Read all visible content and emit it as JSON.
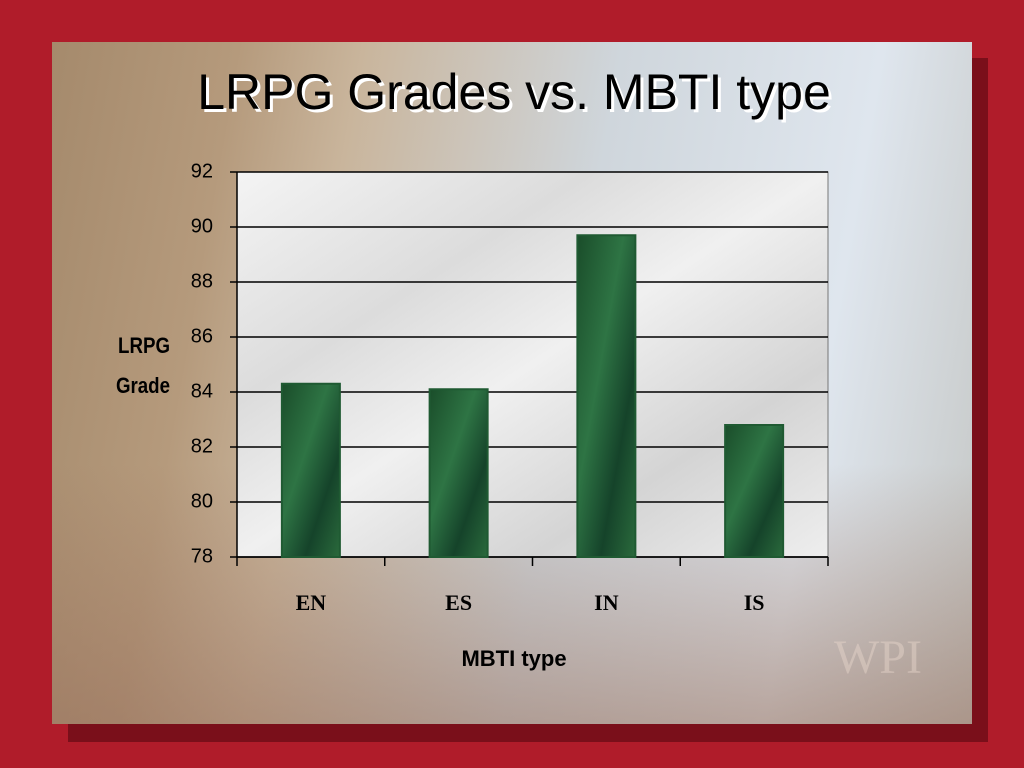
{
  "chart_data": {
    "type": "bar",
    "title": "LRPG Grades vs. MBTI type",
    "x_label": "MBTI type",
    "y_label": "LRPG Grade",
    "categories": [
      "EN",
      "ES",
      "IN",
      "IS"
    ],
    "values": [
      84.3,
      84.1,
      89.7,
      82.8
    ],
    "color": "#1f5a32",
    "ylim": [
      78,
      92
    ],
    "yticks": [
      78,
      80,
      82,
      84,
      86,
      88,
      90,
      92
    ],
    "grid": true
  },
  "watermark": "WPI"
}
